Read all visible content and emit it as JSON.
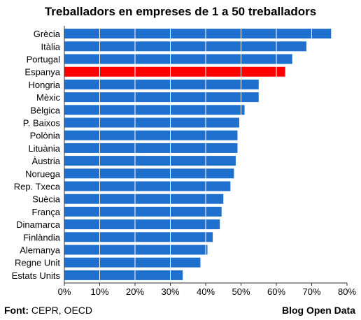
{
  "chart_data": {
    "type": "bar",
    "orientation": "horizontal",
    "title": "Treballadors en empreses de 1 a 50 treballadors",
    "categories": [
      "Grècia",
      "Itàlia",
      "Portugal",
      "Espanya",
      "Hongria",
      "Mèxic",
      "Bèlgica",
      "P. Baixos",
      "Polònia",
      "Lituània",
      "Àustria",
      "Noruega",
      "Rep. Txeca",
      "Suècia",
      "França",
      "Dinamarca",
      "Finlàndia",
      "Alemanya",
      "Regne Unit",
      "Estats Units"
    ],
    "values": [
      75.5,
      68.5,
      64.5,
      62.5,
      55.0,
      55.0,
      51.0,
      49.5,
      49.0,
      49.0,
      48.5,
      48.0,
      47.0,
      45.0,
      44.5,
      44.0,
      42.0,
      40.5,
      38.5,
      33.5
    ],
    "highlight": "Espanya",
    "xlim": [
      0,
      80
    ],
    "xticks": [
      "0%",
      "10%",
      "20%",
      "30%",
      "40%",
      "50%",
      "60%",
      "70%",
      "80%"
    ],
    "grid": true,
    "bar_color": "#1f6fcf",
    "highlight_color": "#ff0000"
  },
  "footer": {
    "source_label": "Font:",
    "source_text": " CEPR, OECD",
    "brand": "Blog Open Data"
  }
}
